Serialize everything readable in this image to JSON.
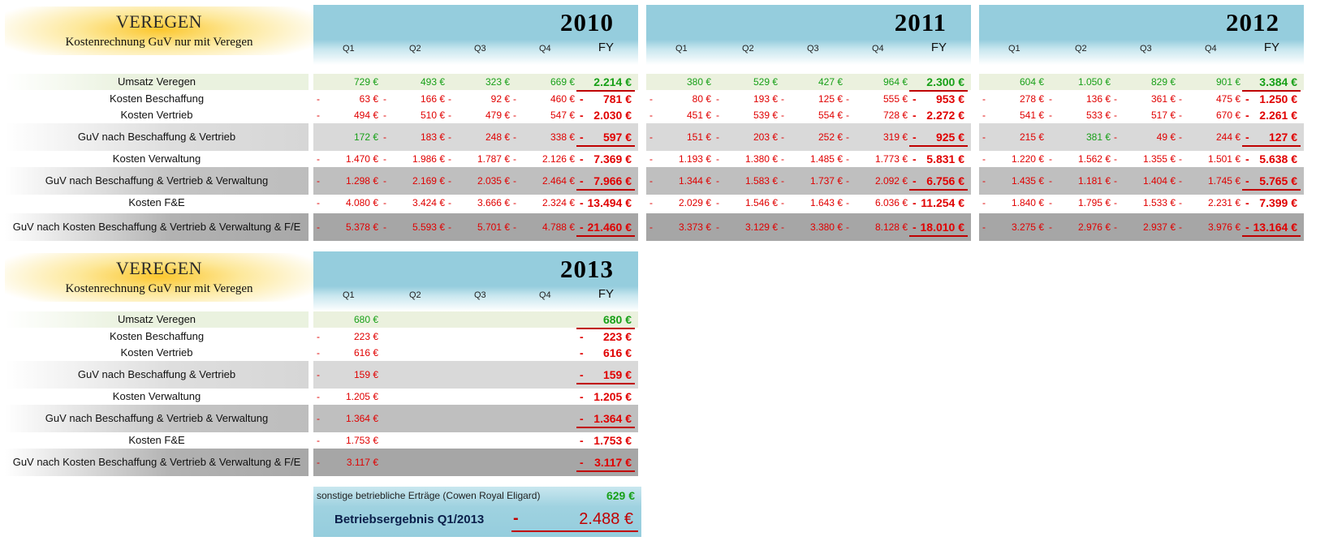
{
  "brand": "VEREGEN",
  "subtitle": "Kostenrechnung GuV nur mit Veregen",
  "quarter_headers": [
    "Q1",
    "Q2",
    "Q3",
    "Q4"
  ],
  "fy_header": "FY",
  "row_labels": [
    "Umsatz Veregen",
    "Kosten Beschaffung",
    "Kosten Vertrieb",
    "GuV nach Beschaffung & Vertrieb",
    "Kosten Verwaltung",
    "GuV nach Beschaffung & Vertrieb & Verwaltung",
    "Kosten F&E",
    "GuV nach Kosten Beschaffung & Vertrieb & Verwaltung & F/E"
  ],
  "years": [
    {
      "year": "2010",
      "rows": [
        {
          "q": [
            [
              "",
              "729 €",
              "pos"
            ],
            [
              "",
              "493 €",
              "pos"
            ],
            [
              "",
              "323 €",
              "pos"
            ],
            [
              "",
              "669 €",
              "pos"
            ]
          ],
          "fy": [
            "",
            "2.214 €",
            "pos"
          ]
        },
        {
          "q": [
            [
              "-",
              "63 €",
              "neg"
            ],
            [
              "-",
              "166 €",
              "neg"
            ],
            [
              "-",
              "92 €",
              "neg"
            ],
            [
              "-",
              "460 €",
              "neg"
            ]
          ],
          "fy": [
            "-",
            "781 €",
            "neg"
          ]
        },
        {
          "q": [
            [
              "-",
              "494 €",
              "neg"
            ],
            [
              "-",
              "510 €",
              "neg"
            ],
            [
              "-",
              "479 €",
              "neg"
            ],
            [
              "-",
              "547 €",
              "neg"
            ]
          ],
          "fy": [
            "-",
            "2.030 €",
            "neg"
          ]
        },
        {
          "q": [
            [
              "",
              "172 €",
              "pos"
            ],
            [
              "-",
              "183 €",
              "neg"
            ],
            [
              "-",
              "248 €",
              "neg"
            ],
            [
              "-",
              "338 €",
              "neg"
            ]
          ],
          "fy": [
            "-",
            "597 €",
            "neg"
          ]
        },
        {
          "q": [
            [
              "-",
              "1.470 €",
              "neg"
            ],
            [
              "-",
              "1.986 €",
              "neg"
            ],
            [
              "-",
              "1.787 €",
              "neg"
            ],
            [
              "-",
              "2.126 €",
              "neg"
            ]
          ],
          "fy": [
            "-",
            "7.369 €",
            "neg"
          ]
        },
        {
          "q": [
            [
              "-",
              "1.298 €",
              "neg"
            ],
            [
              "-",
              "2.169 €",
              "neg"
            ],
            [
              "-",
              "2.035 €",
              "neg"
            ],
            [
              "-",
              "2.464 €",
              "neg"
            ]
          ],
          "fy": [
            "-",
            "7.966 €",
            "neg"
          ]
        },
        {
          "q": [
            [
              "-",
              "4.080 €",
              "neg"
            ],
            [
              "-",
              "3.424 €",
              "neg"
            ],
            [
              "-",
              "3.666 €",
              "neg"
            ],
            [
              "-",
              "2.324 €",
              "neg"
            ]
          ],
          "fy": [
            "-",
            "13.494 €",
            "neg"
          ]
        },
        {
          "q": [
            [
              "-",
              "5.378 €",
              "neg"
            ],
            [
              "-",
              "5.593 €",
              "neg"
            ],
            [
              "-",
              "5.701 €",
              "neg"
            ],
            [
              "-",
              "4.788 €",
              "neg"
            ]
          ],
          "fy": [
            "-",
            "21.460 €",
            "neg"
          ]
        }
      ]
    },
    {
      "year": "2011",
      "rows": [
        {
          "q": [
            [
              "",
              "380 €",
              "pos"
            ],
            [
              "",
              "529 €",
              "pos"
            ],
            [
              "",
              "427 €",
              "pos"
            ],
            [
              "",
              "964 €",
              "pos"
            ]
          ],
          "fy": [
            "",
            "2.300 €",
            "pos"
          ]
        },
        {
          "q": [
            [
              "-",
              "80 €",
              "neg"
            ],
            [
              "-",
              "193 €",
              "neg"
            ],
            [
              "-",
              "125 €",
              "neg"
            ],
            [
              "-",
              "555 €",
              "neg"
            ]
          ],
          "fy": [
            "-",
            "953 €",
            "neg"
          ]
        },
        {
          "q": [
            [
              "-",
              "451 €",
              "neg"
            ],
            [
              "-",
              "539 €",
              "neg"
            ],
            [
              "-",
              "554 €",
              "neg"
            ],
            [
              "-",
              "728 €",
              "neg"
            ]
          ],
          "fy": [
            "-",
            "2.272 €",
            "neg"
          ]
        },
        {
          "q": [
            [
              "-",
              "151 €",
              "neg"
            ],
            [
              "-",
              "203 €",
              "neg"
            ],
            [
              "-",
              "252 €",
              "neg"
            ],
            [
              "-",
              "319 €",
              "neg"
            ]
          ],
          "fy": [
            "-",
            "925 €",
            "neg"
          ]
        },
        {
          "q": [
            [
              "-",
              "1.193 €",
              "neg"
            ],
            [
              "-",
              "1.380 €",
              "neg"
            ],
            [
              "-",
              "1.485 €",
              "neg"
            ],
            [
              "-",
              "1.773 €",
              "neg"
            ]
          ],
          "fy": [
            "-",
            "5.831 €",
            "neg"
          ]
        },
        {
          "q": [
            [
              "-",
              "1.344 €",
              "neg"
            ],
            [
              "-",
              "1.583 €",
              "neg"
            ],
            [
              "-",
              "1.737 €",
              "neg"
            ],
            [
              "-",
              "2.092 €",
              "neg"
            ]
          ],
          "fy": [
            "-",
            "6.756 €",
            "neg"
          ]
        },
        {
          "q": [
            [
              "-",
              "2.029 €",
              "neg"
            ],
            [
              "-",
              "1.546 €",
              "neg"
            ],
            [
              "-",
              "1.643 €",
              "neg"
            ],
            [
              "-",
              "6.036 €",
              "neg"
            ]
          ],
          "fy": [
            "-",
            "11.254 €",
            "neg"
          ]
        },
        {
          "q": [
            [
              "-",
              "3.373 €",
              "neg"
            ],
            [
              "-",
              "3.129 €",
              "neg"
            ],
            [
              "-",
              "3.380 €",
              "neg"
            ],
            [
              "-",
              "8.128 €",
              "neg"
            ]
          ],
          "fy": [
            "-",
            "18.010 €",
            "neg"
          ]
        }
      ]
    },
    {
      "year": "2012",
      "rows": [
        {
          "q": [
            [
              "",
              "604 €",
              "pos"
            ],
            [
              "",
              "1.050 €",
              "pos"
            ],
            [
              "",
              "829 €",
              "pos"
            ],
            [
              "",
              "901 €",
              "pos"
            ]
          ],
          "fy": [
            "",
            "3.384 €",
            "pos"
          ]
        },
        {
          "q": [
            [
              "-",
              "278 €",
              "neg"
            ],
            [
              "-",
              "136 €",
              "neg"
            ],
            [
              "-",
              "361 €",
              "neg"
            ],
            [
              "-",
              "475 €",
              "neg"
            ]
          ],
          "fy": [
            "-",
            "1.250 €",
            "neg"
          ]
        },
        {
          "q": [
            [
              "-",
              "541 €",
              "neg"
            ],
            [
              "-",
              "533 €",
              "neg"
            ],
            [
              "-",
              "517 €",
              "neg"
            ],
            [
              "-",
              "670 €",
              "neg"
            ]
          ],
          "fy": [
            "-",
            "2.261 €",
            "neg"
          ]
        },
        {
          "q": [
            [
              "-",
              "215 €",
              "neg"
            ],
            [
              "",
              "381 €",
              "pos"
            ],
            [
              "-",
              "49 €",
              "neg"
            ],
            [
              "-",
              "244 €",
              "neg"
            ]
          ],
          "fy": [
            "-",
            "127 €",
            "neg"
          ]
        },
        {
          "q": [
            [
              "-",
              "1.220 €",
              "neg"
            ],
            [
              "-",
              "1.562 €",
              "neg"
            ],
            [
              "-",
              "1.355 €",
              "neg"
            ],
            [
              "-",
              "1.501 €",
              "neg"
            ]
          ],
          "fy": [
            "-",
            "5.638 €",
            "neg"
          ]
        },
        {
          "q": [
            [
              "-",
              "1.435 €",
              "neg"
            ],
            [
              "-",
              "1.181 €",
              "neg"
            ],
            [
              "-",
              "1.404 €",
              "neg"
            ],
            [
              "-",
              "1.745 €",
              "neg"
            ]
          ],
          "fy": [
            "-",
            "5.765 €",
            "neg"
          ]
        },
        {
          "q": [
            [
              "-",
              "1.840 €",
              "neg"
            ],
            [
              "-",
              "1.795 €",
              "neg"
            ],
            [
              "-",
              "1.533 €",
              "neg"
            ],
            [
              "-",
              "2.231 €",
              "neg"
            ]
          ],
          "fy": [
            "-",
            "7.399 €",
            "neg"
          ]
        },
        {
          "q": [
            [
              "-",
              "3.275 €",
              "neg"
            ],
            [
              "-",
              "2.976 €",
              "neg"
            ],
            [
              "-",
              "2.937 €",
              "neg"
            ],
            [
              "-",
              "3.976 €",
              "neg"
            ]
          ],
          "fy": [
            "-",
            "13.164 €",
            "neg"
          ]
        }
      ]
    },
    {
      "year": "2013",
      "rows": [
        {
          "q": [
            [
              "",
              "680 €",
              "pos"
            ],
            [
              "",
              "",
              ""
            ],
            [
              "",
              "",
              ""
            ],
            [
              "",
              "",
              ""
            ]
          ],
          "fy": [
            "",
            "680 €",
            "pos"
          ]
        },
        {
          "q": [
            [
              "-",
              "223 €",
              "neg"
            ],
            [
              "",
              "",
              ""
            ],
            [
              "",
              "",
              ""
            ],
            [
              "",
              "",
              ""
            ]
          ],
          "fy": [
            "-",
            "223 €",
            "neg"
          ]
        },
        {
          "q": [
            [
              "-",
              "616 €",
              "neg"
            ],
            [
              "",
              "",
              ""
            ],
            [
              "",
              "",
              ""
            ],
            [
              "",
              "",
              ""
            ]
          ],
          "fy": [
            "-",
            "616 €",
            "neg"
          ]
        },
        {
          "q": [
            [
              "-",
              "159 €",
              "neg"
            ],
            [
              "",
              "",
              ""
            ],
            [
              "",
              "",
              ""
            ],
            [
              "",
              "",
              ""
            ]
          ],
          "fy": [
            "-",
            "159 €",
            "neg"
          ]
        },
        {
          "q": [
            [
              "-",
              "1.205 €",
              "neg"
            ],
            [
              "",
              "",
              ""
            ],
            [
              "",
              "",
              ""
            ],
            [
              "",
              "",
              ""
            ]
          ],
          "fy": [
            "-",
            "1.205 €",
            "neg"
          ]
        },
        {
          "q": [
            [
              "-",
              "1.364 €",
              "neg"
            ],
            [
              "",
              "",
              ""
            ],
            [
              "",
              "",
              ""
            ],
            [
              "",
              "",
              ""
            ]
          ],
          "fy": [
            "-",
            "1.364 €",
            "neg"
          ]
        },
        {
          "q": [
            [
              "-",
              "1.753 €",
              "neg"
            ],
            [
              "",
              "",
              ""
            ],
            [
              "",
              "",
              ""
            ],
            [
              "",
              "",
              ""
            ]
          ],
          "fy": [
            "-",
            "1.753 €",
            "neg"
          ]
        },
        {
          "q": [
            [
              "-",
              "3.117 €",
              "neg"
            ],
            [
              "",
              "",
              ""
            ],
            [
              "",
              "",
              ""
            ],
            [
              "",
              "",
              ""
            ]
          ],
          "fy": [
            "-",
            "3.117 €",
            "neg"
          ]
        }
      ]
    }
  ],
  "footer": {
    "other_income_label": "sonstige betriebliche Erträge (Cowen Royal Eligard)",
    "other_income_value": "629 €",
    "result_label": "Betriebsergebnis Q1/2013",
    "result_sign": "-",
    "result_value": "2.488 €"
  },
  "colors": {
    "positive": "#18a018",
    "negative": "#e00000",
    "header_blue": "#95cddd",
    "brand_gold": "#fcc72e"
  }
}
